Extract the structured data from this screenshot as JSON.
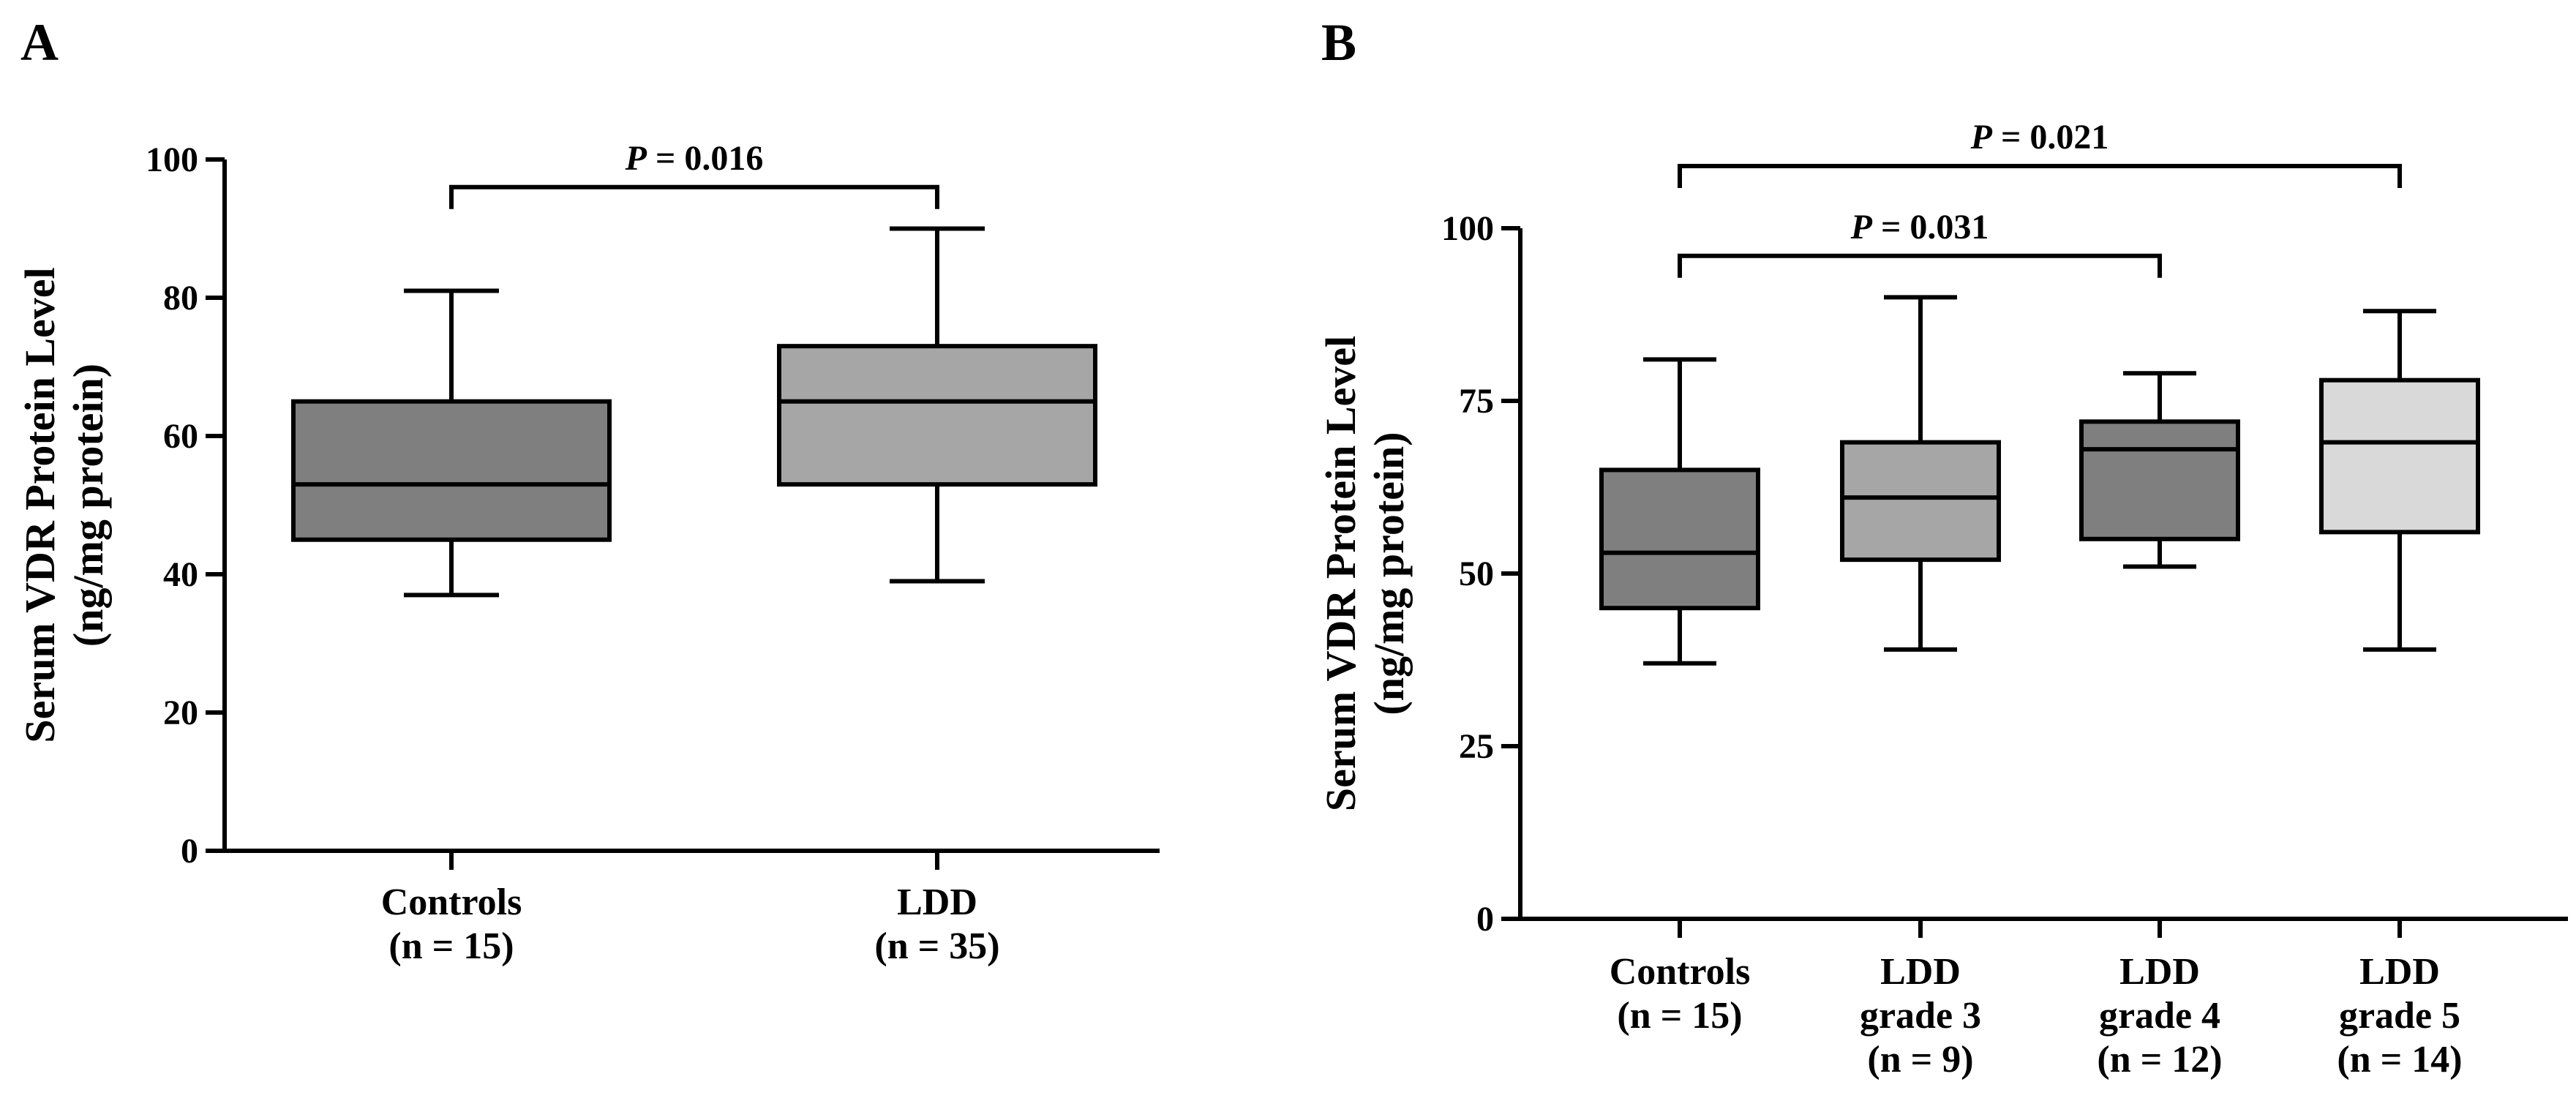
{
  "chart_data": [
    {
      "panel_letter": "A",
      "type": "box",
      "ylabel": [
        "Serum VDR Protein Level",
        "(ng/mg protein)"
      ],
      "xlabel": "",
      "ylim": [
        0,
        100
      ],
      "yticks": [
        0,
        20,
        40,
        60,
        80,
        100
      ],
      "categories": [
        {
          "label": [
            "Controls",
            "(n = 15)"
          ],
          "whisker_low": 37,
          "q1": 45,
          "median": 53,
          "q3": 65,
          "whisker_high": 81,
          "fill": "#7f7f7f"
        },
        {
          "label": [
            "LDD",
            "(n = 35)"
          ],
          "whisker_low": 39,
          "q1": 53,
          "median": 65,
          "q3": 73,
          "whisker_high": 90,
          "fill": "#a6a6a6"
        }
      ],
      "comparisons": [
        {
          "from": 0,
          "to": 1,
          "y": 96,
          "p_prefix": "P",
          "p_text": " = 0.016"
        }
      ]
    },
    {
      "panel_letter": "B",
      "type": "box",
      "ylabel": [
        "Serum VDR Protein Level",
        "(ng/mg protein)"
      ],
      "xlabel": "",
      "ylim": [
        0,
        100
      ],
      "yticks": [
        0,
        25,
        50,
        75,
        100
      ],
      "categories": [
        {
          "label": [
            "Controls",
            "(n = 15)"
          ],
          "whisker_low": 37,
          "q1": 45,
          "median": 53,
          "q3": 65,
          "whisker_high": 81,
          "fill": "#7f7f7f"
        },
        {
          "label": [
            "LDD",
            "grade 3",
            "(n = 9)"
          ],
          "whisker_low": 39,
          "q1": 52,
          "median": 61,
          "q3": 69,
          "whisker_high": 90,
          "fill": "#a6a6a6"
        },
        {
          "label": [
            "LDD",
            "grade 4",
            "(n = 12)"
          ],
          "whisker_low": 51,
          "q1": 55,
          "median": 68,
          "q3": 72,
          "whisker_high": 79,
          "fill": "#7f7f7f"
        },
        {
          "label": [
            "LDD",
            "grade 5",
            "(n = 14)"
          ],
          "whisker_low": 39,
          "q1": 56,
          "median": 69,
          "q3": 78,
          "whisker_high": 88,
          "fill": "#d9d9d9"
        }
      ],
      "comparisons": [
        {
          "from": 0,
          "to": 3,
          "y": 109,
          "p_prefix": "P",
          "p_text": " = 0.021"
        },
        {
          "from": 0,
          "to": 2,
          "y": 96,
          "p_prefix": "P",
          "p_text": " = 0.031"
        }
      ]
    }
  ]
}
